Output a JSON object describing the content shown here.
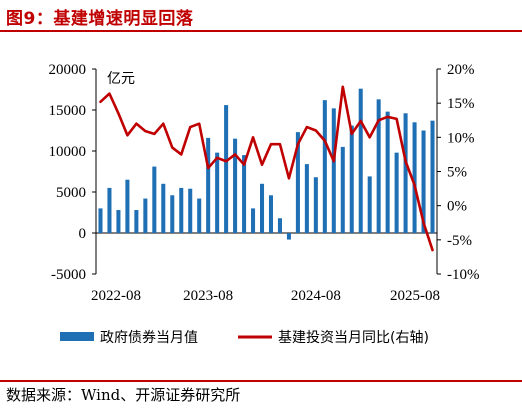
{
  "figure": {
    "title": "图9：基建增速明显回落",
    "source": "数据来源：Wind、开源证券研究所"
  },
  "chart_data": {
    "type": "bar",
    "unit_left": "亿元",
    "x_tick_labels": [
      "2022-08",
      "2023-08",
      "2024-08",
      "2025-08"
    ],
    "ylim_left": [
      -5000,
      20000
    ],
    "yticks_left": [
      "-5000",
      "0",
      "5000",
      "10000",
      "15000",
      "20000"
    ],
    "ylim_right": [
      -10,
      20
    ],
    "yticks_right": [
      "-10%",
      "-5%",
      "0%",
      "5%",
      "10%",
      "15%",
      "20%"
    ],
    "legend_position": "bottom",
    "colors": {
      "bar": "#1f6fb4",
      "line": "#c00000"
    },
    "series": [
      {
        "name": "政府债券当月值",
        "kind": "bar",
        "axis": "left",
        "values": [
          3000,
          5500,
          2800,
          6500,
          2800,
          4200,
          8100,
          6000,
          4600,
          5500,
          5400,
          4200,
          11600,
          9800,
          15600,
          11500,
          9500,
          3000,
          6000,
          4600,
          1800,
          -800,
          12300,
          8400,
          6800,
          16200,
          15200,
          10500,
          13100,
          17600,
          6900,
          16300,
          14800,
          9800,
          14600,
          13500,
          12500,
          13700
        ]
      },
      {
        "name": "基建投资当月同比(右轴)",
        "kind": "line",
        "axis": "right",
        "values": [
          15.2,
          16.4,
          13.5,
          10.3,
          12.0,
          10.9,
          10.5,
          12.0,
          8.5,
          7.5,
          11.5,
          12.0,
          5.5,
          7.0,
          6.5,
          7.5,
          6.0,
          10.0,
          6.0,
          9.0,
          9.0,
          4.0,
          9.0,
          11.5,
          11.0,
          9.5,
          6.5,
          17.4,
          10.5,
          12.4,
          10.0,
          12.5,
          13.0,
          12.7,
          6.5,
          3.0,
          -2.5,
          -6.5
        ]
      }
    ]
  }
}
